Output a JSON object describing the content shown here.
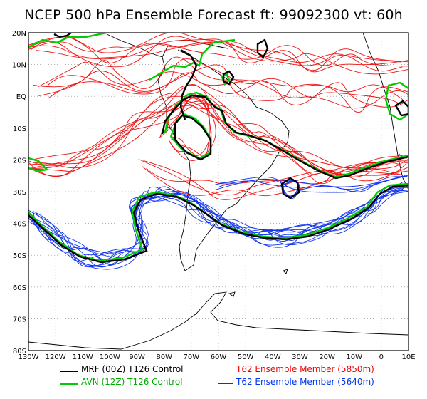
{
  "title": "NCEP 500 hPa Ensemble Forecast   ft: 99092300 vt: 60h",
  "map": {
    "lon_ticks": [
      "130W",
      "120W",
      "110W",
      "100W",
      "90W",
      "80W",
      "70W",
      "60W",
      "50W",
      "40W",
      "30W",
      "20W",
      "10W",
      "0",
      "10E"
    ],
    "lat_ticks": [
      "20N",
      "10N",
      "EQ",
      "10S",
      "20S",
      "30S",
      "40S",
      "50S",
      "60S",
      "70S",
      "80S"
    ],
    "lon_range": [
      -130,
      10
    ],
    "lat_range": [
      -80,
      20
    ],
    "grid": "dotted"
  },
  "legend": [
    {
      "label": "MRF (00Z) T126 Control",
      "color": "#000000",
      "width": 2.5
    },
    {
      "label": "AVN (12Z) T126 Control",
      "color": "#00cc00",
      "width": 2.5
    },
    {
      "label": "T62 Ensemble Member (5850m)",
      "color": "#ee0000",
      "width": 1
    },
    {
      "label": "T62 Ensemble Member (5640m)",
      "color": "#0033ee",
      "width": 1
    }
  ],
  "colors": {
    "mrf": "#000000",
    "avn": "#00cc00",
    "red_members": "#ee1111",
    "blue_members": "#1133ee",
    "coast": "#000000"
  }
}
